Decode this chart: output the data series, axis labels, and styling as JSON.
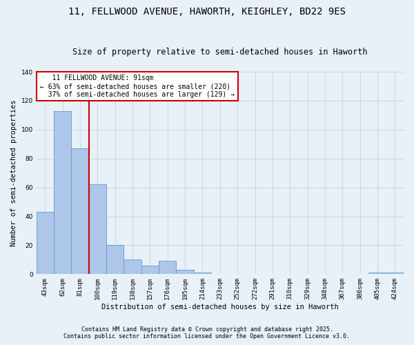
{
  "title_line1": "11, FELLWOOD AVENUE, HAWORTH, KEIGHLEY, BD22 9ES",
  "title_line2": "Size of property relative to semi-detached houses in Haworth",
  "xlabel": "Distribution of semi-detached houses by size in Haworth",
  "ylabel": "Number of semi-detached properties",
  "bar_labels": [
    "43sqm",
    "62sqm",
    "81sqm",
    "100sqm",
    "119sqm",
    "138sqm",
    "157sqm",
    "176sqm",
    "195sqm",
    "214sqm",
    "233sqm",
    "252sqm",
    "272sqm",
    "291sqm",
    "310sqm",
    "329sqm",
    "348sqm",
    "367sqm",
    "386sqm",
    "405sqm",
    "424sqm"
  ],
  "bar_values": [
    43,
    113,
    87,
    62,
    20,
    10,
    6,
    9,
    3,
    1,
    0,
    0,
    0,
    0,
    0,
    0,
    0,
    0,
    0,
    1,
    1
  ],
  "bar_color": "#aec6e8",
  "bar_edge_color": "#5b9bd5",
  "grid_color": "#d0d8e8",
  "background_color": "#e8f0f8",
  "vline_x": 2.5,
  "property_label": "11 FELLWOOD AVENUE: 91sqm",
  "pct_smaller": 63,
  "n_smaller": 220,
  "pct_larger": 37,
  "n_larger": 129,
  "annotation_box_color": "#ffffff",
  "annotation_box_edge": "#cc0000",
  "vline_color": "#cc0000",
  "ylim": [
    0,
    140
  ],
  "yticks": [
    0,
    20,
    40,
    60,
    80,
    100,
    120,
    140
  ],
  "footer_line1": "Contains HM Land Registry data © Crown copyright and database right 2025.",
  "footer_line2": "Contains public sector information licensed under the Open Government Licence v3.0.",
  "title_fontsize": 10,
  "subtitle_fontsize": 8.5,
  "axis_label_fontsize": 7.5,
  "tick_fontsize": 6.5,
  "annotation_fontsize": 7,
  "footer_fontsize": 6
}
